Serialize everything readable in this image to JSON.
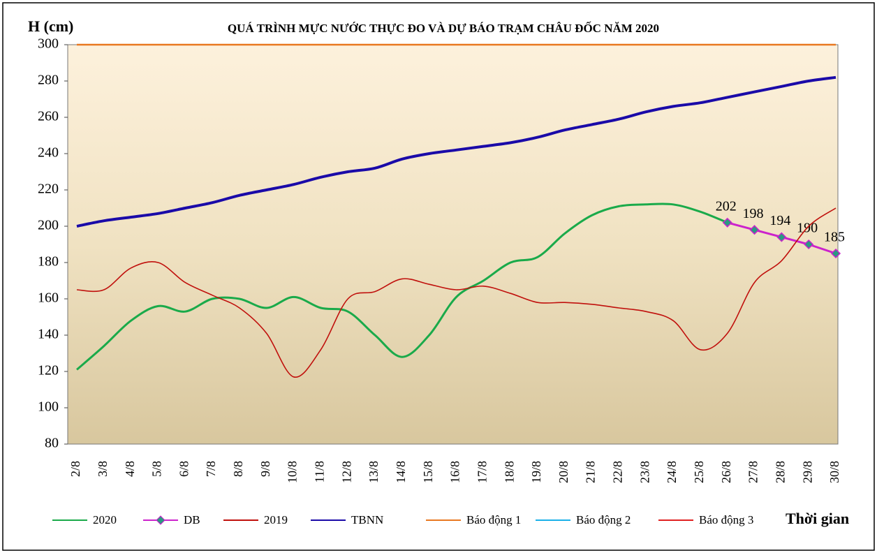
{
  "chart_data": {
    "type": "line",
    "title": "QUÁ TRÌNH MỰC NƯỚC THỰC ĐO VÀ DỰ BÁO TRẠM CHÂU ĐỐC NĂM 2020",
    "y_label": "H (cm)",
    "x_label": "Thời gian",
    "categories": [
      "2/8",
      "3/8",
      "4/8",
      "5/8",
      "6/8",
      "7/8",
      "8/8",
      "9/8",
      "10/8",
      "11/8",
      "12/8",
      "13/8",
      "14/8",
      "15/8",
      "16/8",
      "17/8",
      "18/8",
      "19/8",
      "20/8",
      "21/8",
      "22/8",
      "23/8",
      "24/8",
      "25/8",
      "26/8",
      "27/8",
      "28/8",
      "29/8",
      "30/8"
    ],
    "ylim": [
      80,
      300
    ],
    "yticks": [
      80,
      100,
      120,
      140,
      160,
      180,
      200,
      220,
      240,
      260,
      280,
      300
    ],
    "series": [
      {
        "name": "2020",
        "color": "#1aaa4a",
        "values": [
          121,
          134,
          148,
          156,
          153,
          160,
          160,
          155,
          161,
          155,
          153,
          140,
          128,
          140,
          161,
          170,
          180,
          183,
          196,
          206,
          211,
          212,
          212,
          208,
          202,
          null,
          null,
          null,
          null
        ]
      },
      {
        "name": "DB",
        "color": "#cc22cc",
        "marker": "diamond",
        "marker_color": "#2a9a80",
        "values": [
          null,
          null,
          null,
          null,
          null,
          null,
          null,
          null,
          null,
          null,
          null,
          null,
          null,
          null,
          null,
          null,
          null,
          null,
          null,
          null,
          null,
          null,
          null,
          null,
          202,
          198,
          194,
          190,
          185
        ]
      },
      {
        "name": "2019",
        "color": "#c0100c",
        "values": [
          165,
          165,
          177,
          180,
          169,
          162,
          155,
          141,
          117,
          132,
          160,
          164,
          171,
          168,
          165,
          167,
          163,
          158,
          158,
          157,
          155,
          153,
          148,
          132,
          141,
          169,
          181,
          200,
          210
        ]
      },
      {
        "name": "TBNN",
        "color": "#1a0aa8",
        "values": [
          200,
          203,
          205,
          207,
          210,
          213,
          217,
          220,
          223,
          227,
          230,
          232,
          237,
          240,
          242,
          244,
          246,
          249,
          253,
          256,
          259,
          263,
          266,
          268,
          271,
          274,
          277,
          280,
          282
        ]
      },
      {
        "name": "Báo động 1",
        "color": "#e87820",
        "values": [
          300,
          300,
          300,
          300,
          300,
          300,
          300,
          300,
          300,
          300,
          300,
          300,
          300,
          300,
          300,
          300,
          300,
          300,
          300,
          300,
          300,
          300,
          300,
          300,
          300,
          300,
          300,
          300,
          300
        ]
      },
      {
        "name": "Báo động 2",
        "color": "#1ab0e8",
        "values": [
          null,
          null,
          null,
          null,
          null,
          null,
          null,
          null,
          null,
          null,
          null,
          null,
          null,
          null,
          null,
          null,
          null,
          null,
          null,
          null,
          null,
          null,
          null,
          null,
          null,
          null,
          null,
          null,
          null
        ]
      },
      {
        "name": "Báo động 3",
        "color": "#e02020",
        "values": [
          null,
          null,
          null,
          null,
          null,
          null,
          null,
          null,
          null,
          null,
          null,
          null,
          null,
          null,
          null,
          null,
          null,
          null,
          null,
          null,
          null,
          null,
          null,
          null,
          null,
          null,
          null,
          null,
          null
        ]
      }
    ]
  }
}
